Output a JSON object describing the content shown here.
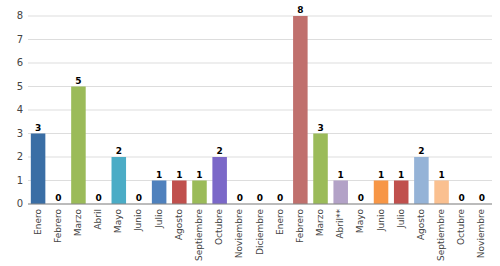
{
  "chart_data": {
    "type": "bar",
    "categories": [
      "Enero",
      "Febrero",
      "Marzo",
      "Abril",
      "Mayo",
      "Junio",
      "Julio",
      "Agosto",
      "Septiembre",
      "Octubre",
      "Noviembre",
      "Diciembre",
      "Enero",
      "Febrero",
      "Marzo",
      "Abril**",
      "Mayo",
      "Junio",
      "Julio",
      "Agosto",
      "Septiembre",
      "Octubre",
      "Noviembre"
    ],
    "values": [
      3,
      0,
      5,
      0,
      2,
      0,
      1,
      1,
      1,
      2,
      0,
      0,
      0,
      8,
      3,
      1,
      0,
      1,
      1,
      2,
      1,
      0,
      0
    ],
    "colors": [
      "#3A6EA5",
      "#C0504D",
      "#9BBB59",
      "#4BACC6",
      "#4BACC6",
      "#F79646",
      "#4F81BD",
      "#C0504D",
      "#9BBB59",
      "#7B68C8",
      "#4BACC6",
      "#F79646",
      "#4F81BD",
      "#C0706D",
      "#9BBB59",
      "#B3A2C7",
      "#4BACC6",
      "#F79646",
      "#C0504D",
      "#95B3D7",
      "#FAC090",
      "#B8CCE4",
      "#CCC0DA"
    ],
    "ylim": [
      0,
      8
    ],
    "yticks": [
      0,
      1,
      2,
      3,
      4,
      5,
      6,
      7,
      8
    ],
    "grid": true,
    "data_labels": true
  }
}
